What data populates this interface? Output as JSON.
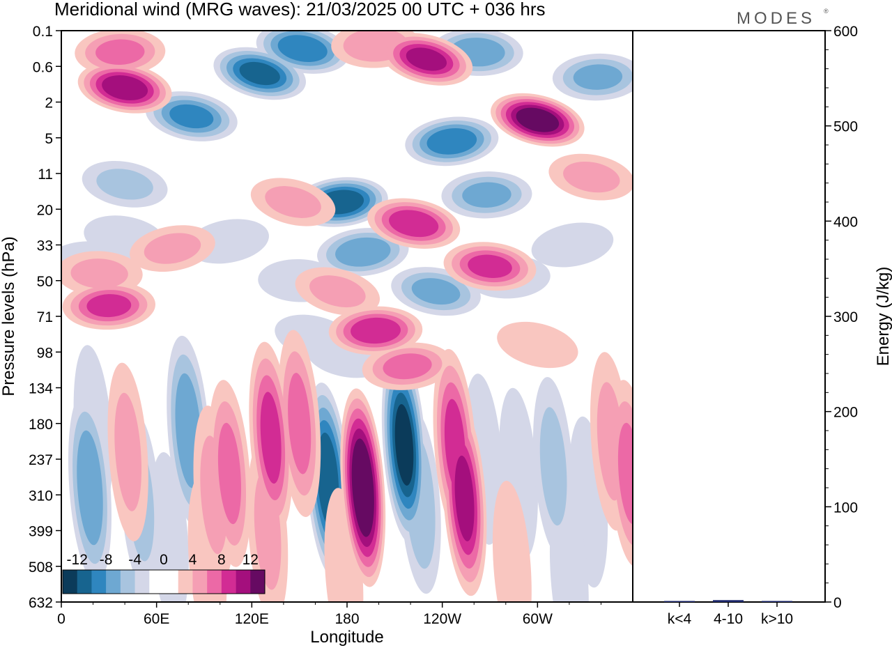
{
  "chart_data": {
    "type": "heatmap",
    "title": "Meridional wind (MRG waves):  21/03/2025  00 UTC  + 036 hrs",
    "logo": "MODES",
    "xlabel": "Longitude",
    "ylabel": "Pressure levels (hPa)",
    "x_ticks": [
      "0",
      "60E",
      "120E",
      "180",
      "120W",
      "60W"
    ],
    "x_tick_values": [
      0,
      60,
      120,
      180,
      240,
      300
    ],
    "xlim": [
      0,
      360
    ],
    "y_ticks": [
      "0.1",
      "0.6",
      "2",
      "5",
      "11",
      "20",
      "33",
      "50",
      "71",
      "98",
      "134",
      "180",
      "237",
      "310",
      "399",
      "508",
      "632"
    ],
    "ylim": [
      "0.1",
      "632"
    ],
    "colorbar": {
      "labels": [
        "-12",
        "-8",
        "-4",
        "0",
        "4",
        "8",
        "12"
      ],
      "label_values": [
        -12,
        -8,
        -4,
        0,
        4,
        8,
        12
      ],
      "colors": [
        "#0b3b5a",
        "#17648f",
        "#2f86bf",
        "#6ea8d2",
        "#a8c4df",
        "#d4d7e8",
        "#ffffff",
        "#ffffff",
        "#f9c6c0",
        "#f59fb4",
        "#ec69a6",
        "#d22c94",
        "#a40f7d",
        "#660a62"
      ]
    },
    "cells": [
      {
        "lon": 40,
        "lev": 1.6,
        "v": 11
      },
      {
        "lon": 37,
        "lev": 0.6,
        "v": 6
      },
      {
        "lon": 82,
        "lev": 2.4,
        "v": -8
      },
      {
        "lon": 40,
        "lev": 4.3,
        "v": -4
      },
      {
        "lon": 125,
        "lev": 1.2,
        "v": -10
      },
      {
        "lon": 152,
        "lev": 0.5,
        "v": -9
      },
      {
        "lon": 176,
        "lev": 4.8,
        "v": -11
      },
      {
        "lon": 190,
        "lev": 6.2,
        "v": -7
      },
      {
        "lon": 222,
        "lev": 5.4,
        "v": 9
      },
      {
        "lon": 198,
        "lev": 0.4,
        "v": 5
      },
      {
        "lon": 230,
        "lev": 0.8,
        "v": 10
      },
      {
        "lon": 246,
        "lev": 3.1,
        "v": -9
      },
      {
        "lon": 300,
        "lev": 2.5,
        "v": 13
      },
      {
        "lon": 262,
        "lev": 0.6,
        "v": -7
      },
      {
        "lon": 268,
        "lev": 4.6,
        "v": -6
      },
      {
        "lon": 338,
        "lev": 1.3,
        "v": -6
      },
      {
        "lon": 334,
        "lev": 4.1,
        "v": 4
      },
      {
        "lon": 24,
        "lev": 6.8,
        "v": 4
      },
      {
        "lon": 40,
        "lev": 5.8,
        "v": -3
      },
      {
        "lon": 146,
        "lev": 4.8,
        "v": 4
      },
      {
        "lon": 105,
        "lev": 5.9,
        "v": -3
      },
      {
        "lon": 70,
        "lev": 6.1,
        "v": 4
      },
      {
        "lon": 30,
        "lev": 7.7,
        "v": 8
      },
      {
        "lon": 16,
        "lev": 6.5,
        "v": -3
      },
      {
        "lon": 150,
        "lev": 7.0,
        "v": -3
      },
      {
        "lon": 174,
        "lev": 7.3,
        "v": 4
      },
      {
        "lon": 198,
        "lev": 8.4,
        "v": 9
      },
      {
        "lon": 218,
        "lev": 9.4,
        "v": 6
      },
      {
        "lon": 236,
        "lev": 7.3,
        "v": -6
      },
      {
        "lon": 270,
        "lev": 6.6,
        "v": 8
      },
      {
        "lon": 282,
        "lev": 6.9,
        "v": -3
      },
      {
        "lon": 322,
        "lev": 6.0,
        "v": -3
      },
      {
        "lon": 300,
        "lev": 8.8,
        "v": 3
      },
      {
        "lon": 180,
        "lev": 9.1,
        "v": -3
      },
      {
        "lon": 160,
        "lev": 8.6,
        "v": -3
      },
      {
        "lon": 20,
        "lev": 11.2,
        "v": -3
      },
      {
        "lon": 18,
        "lev": 12.8,
        "v": -7
      },
      {
        "lon": 42,
        "lev": 11.8,
        "v": 4
      },
      {
        "lon": 50,
        "lev": 13.2,
        "v": -4
      },
      {
        "lon": 80,
        "lev": 11.2,
        "v": -7
      },
      {
        "lon": 96,
        "lev": 13.0,
        "v": 4
      },
      {
        "lon": 106,
        "lev": 12.4,
        "v": 6
      },
      {
        "lon": 132,
        "lev": 11.4,
        "v": 8
      },
      {
        "lon": 150,
        "lev": 11.0,
        "v": 6
      },
      {
        "lon": 130,
        "lev": 14.0,
        "v": 4
      },
      {
        "lon": 168,
        "lev": 12.6,
        "v": -11
      },
      {
        "lon": 190,
        "lev": 12.8,
        "v": 14
      },
      {
        "lon": 216,
        "lev": 11.6,
        "v": -12
      },
      {
        "lon": 226,
        "lev": 13.2,
        "v": -5
      },
      {
        "lon": 248,
        "lev": 11.6,
        "v": 8
      },
      {
        "lon": 254,
        "lev": 13.1,
        "v": 10
      },
      {
        "lon": 266,
        "lev": 12.0,
        "v": -3
      },
      {
        "lon": 288,
        "lev": 12.4,
        "v": -3
      },
      {
        "lon": 310,
        "lev": 12.2,
        "v": -4
      },
      {
        "lon": 332,
        "lev": 13.2,
        "v": -3
      },
      {
        "lon": 346,
        "lev": 11.5,
        "v": 4
      },
      {
        "lon": 358,
        "lev": 12.4,
        "v": 6
      },
      {
        "lon": 68,
        "lev": 14.2,
        "v": -3
      },
      {
        "lon": 92,
        "lev": 14.8,
        "v": 3
      },
      {
        "lon": 178,
        "lev": 15.2,
        "v": 3
      },
      {
        "lon": 284,
        "lev": 15.0,
        "v": 3
      },
      {
        "lon": 320,
        "lev": 15.3,
        "v": -3
      }
    ],
    "energy_panel": {
      "ylabel": "Energy (J/kg)",
      "y_ticks": [
        "0",
        "100",
        "200",
        "300",
        "400",
        "500",
        "600"
      ],
      "y_tick_values": [
        0,
        100,
        200,
        300,
        400,
        500,
        600
      ],
      "ylim": [
        0,
        600
      ],
      "categories": [
        "k<4",
        "4-10",
        "k>10"
      ],
      "values": [
        0.5,
        2.0,
        0.5
      ],
      "bar_colors": [
        "#1f2a6e",
        "#1f2a6e",
        "#1f2a6e"
      ]
    }
  }
}
